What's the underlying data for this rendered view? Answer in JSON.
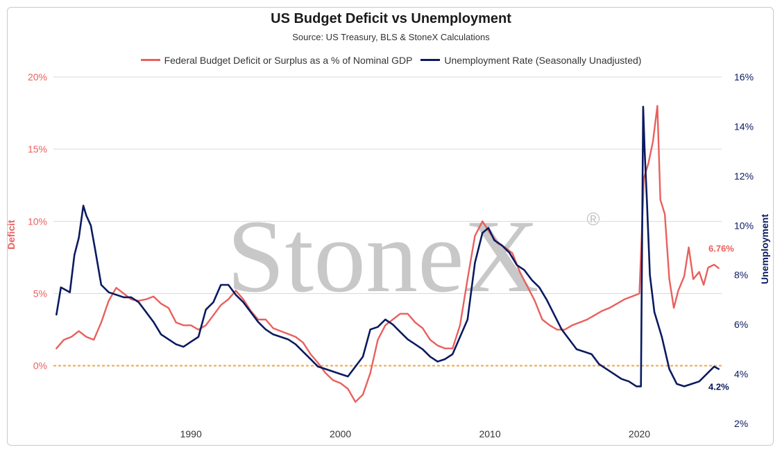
{
  "chart_data": {
    "type": "line",
    "title": "US Budget Deficit vs Unemployment",
    "subtitle": "Source: US Treasury, BLS & StoneX Calculations",
    "watermark": "StoneX",
    "watermark_mark": "®",
    "y_left_label": "Deficit",
    "y_right_label": "Unemployment",
    "y_left_lim": [
      -4,
      20
    ],
    "y_right_lim": [
      2,
      16
    ],
    "y_left_ticks": [
      "0%",
      "5%",
      "10%",
      "15%",
      "20%"
    ],
    "y_right_ticks": [
      "2%",
      "4%",
      "6%",
      "8%",
      "10%",
      "12%",
      "14%",
      "16%"
    ],
    "x_ticks": [
      "1990",
      "2000",
      "2010",
      "2020"
    ],
    "x_lim": [
      1980.8,
      2025.5
    ],
    "reference_line": {
      "axis": "left",
      "value": 0,
      "color": "#f2a640"
    },
    "colors": {
      "deficit": "#e8605d",
      "unemployment": "#0a1a60",
      "grid": "#d9d9d9",
      "watermark": "#c2c2c2"
    },
    "series": [
      {
        "name": "Federal Budget Deficit or Surplus as a % of Nominal GDP",
        "axis": "left",
        "x": [
          1981.0,
          1981.5,
          1982.0,
          1982.5,
          1983.0,
          1983.5,
          1984.0,
          1984.5,
          1985.0,
          1985.5,
          1986.0,
          1986.5,
          1987.0,
          1987.5,
          1988.0,
          1988.5,
          1989.0,
          1989.5,
          1990.0,
          1990.5,
          1991.0,
          1991.5,
          1992.0,
          1992.5,
          1993.0,
          1993.5,
          1994.0,
          1994.5,
          1995.0,
          1995.5,
          1996.0,
          1996.5,
          1997.0,
          1997.5,
          1998.0,
          1998.5,
          1999.0,
          1999.5,
          2000.0,
          2000.5,
          2001.0,
          2001.5,
          2002.0,
          2002.5,
          2003.0,
          2003.5,
          2004.0,
          2004.5,
          2005.0,
          2005.5,
          2006.0,
          2006.5,
          2007.0,
          2007.5,
          2008.0,
          2008.5,
          2009.0,
          2009.5,
          2010.0,
          2010.5,
          2011.0,
          2011.5,
          2012.0,
          2012.5,
          2013.0,
          2013.5,
          2014.0,
          2014.5,
          2015.0,
          2015.5,
          2016.0,
          2016.5,
          2017.0,
          2017.5,
          2018.0,
          2018.5,
          2019.0,
          2019.5,
          2020.0,
          2020.3,
          2020.6,
          2020.9,
          2021.2,
          2021.4,
          2021.7,
          2022.0,
          2022.3,
          2022.6,
          2023.0,
          2023.3,
          2023.6,
          2024.0,
          2024.3,
          2024.6,
          2025.0,
          2025.3
        ],
        "values": [
          1.2,
          1.8,
          2.0,
          2.4,
          2.0,
          1.8,
          3.0,
          4.5,
          5.4,
          5.0,
          4.6,
          4.5,
          4.6,
          4.8,
          4.3,
          4.0,
          3.0,
          2.8,
          2.8,
          2.5,
          2.8,
          3.5,
          4.2,
          4.6,
          5.2,
          4.6,
          3.8,
          3.2,
          3.2,
          2.6,
          2.4,
          2.2,
          2.0,
          1.6,
          0.8,
          0.2,
          -0.5,
          -1.0,
          -1.2,
          -1.6,
          -2.5,
          -2.0,
          -0.5,
          1.8,
          2.8,
          3.2,
          3.6,
          3.6,
          3.0,
          2.6,
          1.8,
          1.4,
          1.2,
          1.2,
          2.8,
          6.0,
          9.0,
          10.0,
          9.2,
          8.5,
          8.2,
          7.8,
          6.5,
          5.5,
          4.5,
          3.2,
          2.8,
          2.5,
          2.5,
          2.8,
          3.0,
          3.2,
          3.5,
          3.8,
          4.0,
          4.3,
          4.6,
          4.8,
          5.0,
          13.0,
          14.0,
          15.5,
          18.0,
          11.5,
          10.5,
          6.0,
          4.0,
          5.2,
          6.2,
          8.2,
          6.0,
          6.5,
          5.6,
          6.8,
          7.0,
          6.76
        ]
      },
      {
        "name": "Unemployment Rate (Seasonally Unadjusted)",
        "axis": "right",
        "x": [
          1981.0,
          1981.3,
          1981.6,
          1981.9,
          1982.2,
          1982.5,
          1982.8,
          1983.0,
          1983.3,
          1983.6,
          1984.0,
          1984.5,
          1985.0,
          1985.5,
          1986.0,
          1986.5,
          1987.0,
          1987.5,
          1988.0,
          1988.5,
          1989.0,
          1989.5,
          1990.0,
          1990.5,
          1991.0,
          1991.5,
          1992.0,
          1992.5,
          1993.0,
          1993.5,
          1994.0,
          1994.5,
          1995.0,
          1995.5,
          1996.0,
          1996.5,
          1997.0,
          1997.5,
          1998.0,
          1998.5,
          1999.0,
          1999.5,
          2000.0,
          2000.5,
          2001.0,
          2001.5,
          2002.0,
          2002.5,
          2003.0,
          2003.5,
          2004.0,
          2004.5,
          2005.0,
          2005.5,
          2006.0,
          2006.5,
          2007.0,
          2007.5,
          2008.0,
          2008.5,
          2009.0,
          2009.5,
          2009.9,
          2010.3,
          2010.8,
          2011.3,
          2011.8,
          2012.3,
          2012.8,
          2013.3,
          2013.8,
          2014.3,
          2014.8,
          2015.3,
          2015.8,
          2016.3,
          2016.8,
          2017.3,
          2017.8,
          2018.3,
          2018.8,
          2019.3,
          2019.8,
          2020.1,
          2020.25,
          2020.35,
          2020.5,
          2020.7,
          2021.0,
          2021.5,
          2022.0,
          2022.5,
          2023.0,
          2023.5,
          2024.0,
          2024.5,
          2025.0,
          2025.3
        ],
        "values": [
          6.4,
          7.5,
          7.4,
          7.3,
          8.8,
          9.5,
          10.8,
          10.4,
          10.0,
          9.0,
          7.6,
          7.3,
          7.2,
          7.1,
          7.1,
          6.9,
          6.5,
          6.1,
          5.6,
          5.4,
          5.2,
          5.1,
          5.3,
          5.5,
          6.6,
          6.9,
          7.6,
          7.6,
          7.2,
          6.9,
          6.5,
          6.1,
          5.8,
          5.6,
          5.5,
          5.4,
          5.2,
          4.9,
          4.6,
          4.3,
          4.2,
          4.1,
          4.0,
          3.9,
          4.3,
          4.7,
          5.8,
          5.9,
          6.2,
          6.0,
          5.7,
          5.4,
          5.2,
          5.0,
          4.7,
          4.5,
          4.6,
          4.8,
          5.5,
          6.2,
          8.5,
          9.7,
          9.9,
          9.4,
          9.2,
          8.9,
          8.4,
          8.2,
          7.8,
          7.5,
          7.0,
          6.4,
          5.8,
          5.4,
          5.0,
          4.9,
          4.8,
          4.4,
          4.2,
          4.0,
          3.8,
          3.7,
          3.5,
          3.5,
          14.8,
          13.0,
          11.0,
          8.0,
          6.5,
          5.5,
          4.2,
          3.6,
          3.5,
          3.6,
          3.7,
          4.0,
          4.3,
          4.2
        ]
      }
    ],
    "end_labels": [
      {
        "series": 0,
        "text": "6.76%"
      },
      {
        "series": 1,
        "text": "4.2%"
      }
    ]
  }
}
